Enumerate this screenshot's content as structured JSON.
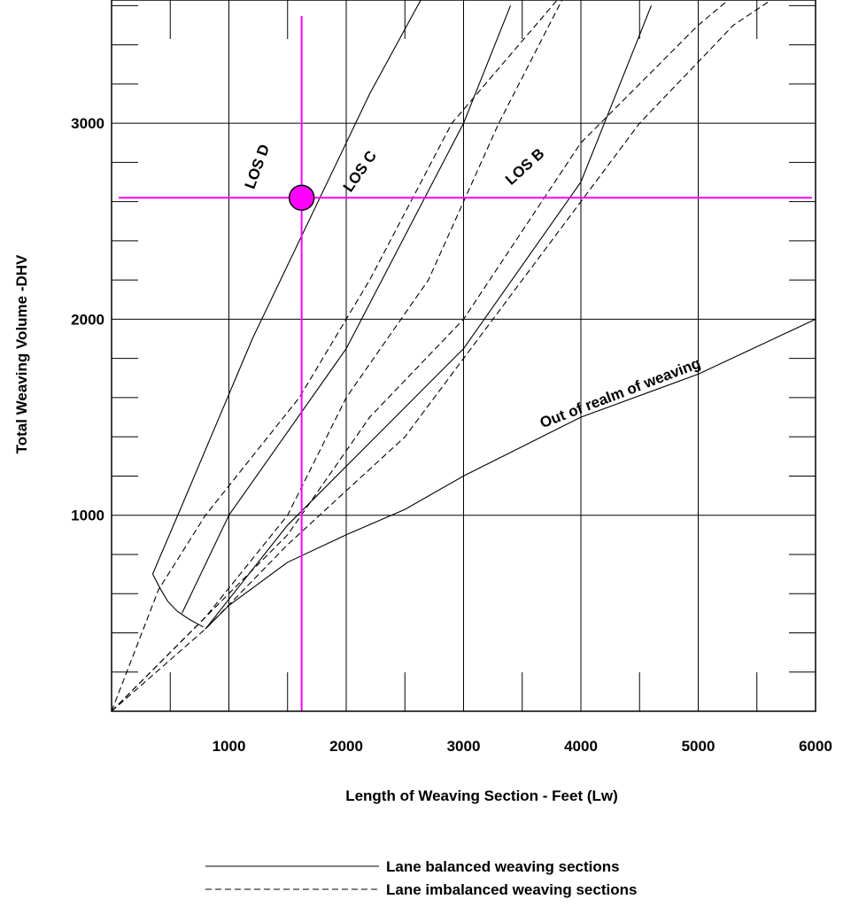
{
  "chart_data": {
    "type": "line",
    "title": "",
    "xlabel": "Length of Weaving Section - Feet (Lw)",
    "ylabel": "Total Weaving Volume -DHV",
    "xlim": [
      0,
      6000
    ],
    "ylim": [
      0,
      3600
    ],
    "x_ticks": [
      1000,
      2000,
      3000,
      4000,
      5000,
      6000
    ],
    "y_ticks": [
      1000,
      2000,
      3000
    ],
    "x_tick_labels": [
      "1000",
      "2000",
      "3000",
      "4000",
      "5000",
      "6000"
    ],
    "y_tick_labels": [
      "1000",
      "2000",
      "3000"
    ],
    "grid": true,
    "series": [
      {
        "name": "Lane balanced weaving sections",
        "style": "solid",
        "lines": [
          {
            "x": [
              350,
              600,
              1200,
              2200,
              2700
            ],
            "y": [
              700,
              1050,
              1900,
              3150,
              3700
            ]
          },
          {
            "x": [
              600,
              1000,
              2000,
              3000,
              3400
            ],
            "y": [
              500,
              1000,
              1850,
              3000,
              3600
            ]
          },
          {
            "x": [
              800,
              1500,
              3000,
              4000,
              4600
            ],
            "y": [
              420,
              950,
              1850,
              2700,
              3600
            ]
          },
          {
            "x": [
              800,
              1000,
              1500,
              2000,
              2500,
              3000,
              4000,
              5000,
              6000
            ],
            "y": [
              420,
              540,
              760,
              900,
              1030,
              1200,
              1500,
              1720,
              2000
            ]
          }
        ]
      },
      {
        "name": "Lane imbalanced weaving sections",
        "style": "dashed",
        "lines": [
          {
            "x": [
              0,
              400,
              800,
              1600,
              2200,
              2900,
              3900
            ],
            "y": [
              0,
              620,
              1000,
              1600,
              2200,
              3000,
              3700
            ]
          },
          {
            "x": [
              0,
              800,
              1500,
              2000,
              2700,
              3300,
              3900
            ],
            "y": [
              0,
              480,
              1000,
              1600,
              2200,
              3000,
              3700
            ]
          },
          {
            "x": [
              0,
              1000,
              1500,
              2200,
              3000,
              4000,
              5000,
              5400
            ],
            "y": [
              0,
              600,
              900,
              1500,
              2000,
              2900,
              3500,
              3700
            ]
          },
          {
            "x": [
              0,
              800,
              1500,
              2500,
              3500,
              4500,
              5300,
              5800
            ],
            "y": [
              0,
              420,
              850,
              1400,
              2200,
              3000,
              3500,
              3700
            ]
          }
        ]
      },
      {
        "name": "LOS boundary curve",
        "style": "solid",
        "lines": [
          {
            "x": [
              350,
              420,
              480,
              560,
              660,
              780
            ],
            "y": [
              700,
              620,
              560,
              510,
              470,
              430
            ]
          }
        ]
      }
    ],
    "crosshair": {
      "x": 1620,
      "y": 2620,
      "color": "#ff00ff"
    },
    "point": {
      "x": 1620,
      "y": 2620,
      "color": "#ff00ff"
    },
    "annotations": [
      {
        "text": "LOS  D",
        "x": 1280,
        "y": 2770,
        "angle": -70
      },
      {
        "text": "LOS  C",
        "x": 2150,
        "y": 2740,
        "angle": -55
      },
      {
        "text": "LOS  B",
        "x": 3550,
        "y": 2760,
        "angle": -42
      },
      {
        "text": "Out of realm of weaving",
        "x": 4350,
        "y": 1600,
        "angle": -21
      }
    ],
    "legend": [
      {
        "label": "Lane balanced weaving sections",
        "style": "solid"
      },
      {
        "label": "Lane imbalanced weaving sections",
        "style": "dashed"
      }
    ],
    "legend_position": "bottom-center"
  }
}
